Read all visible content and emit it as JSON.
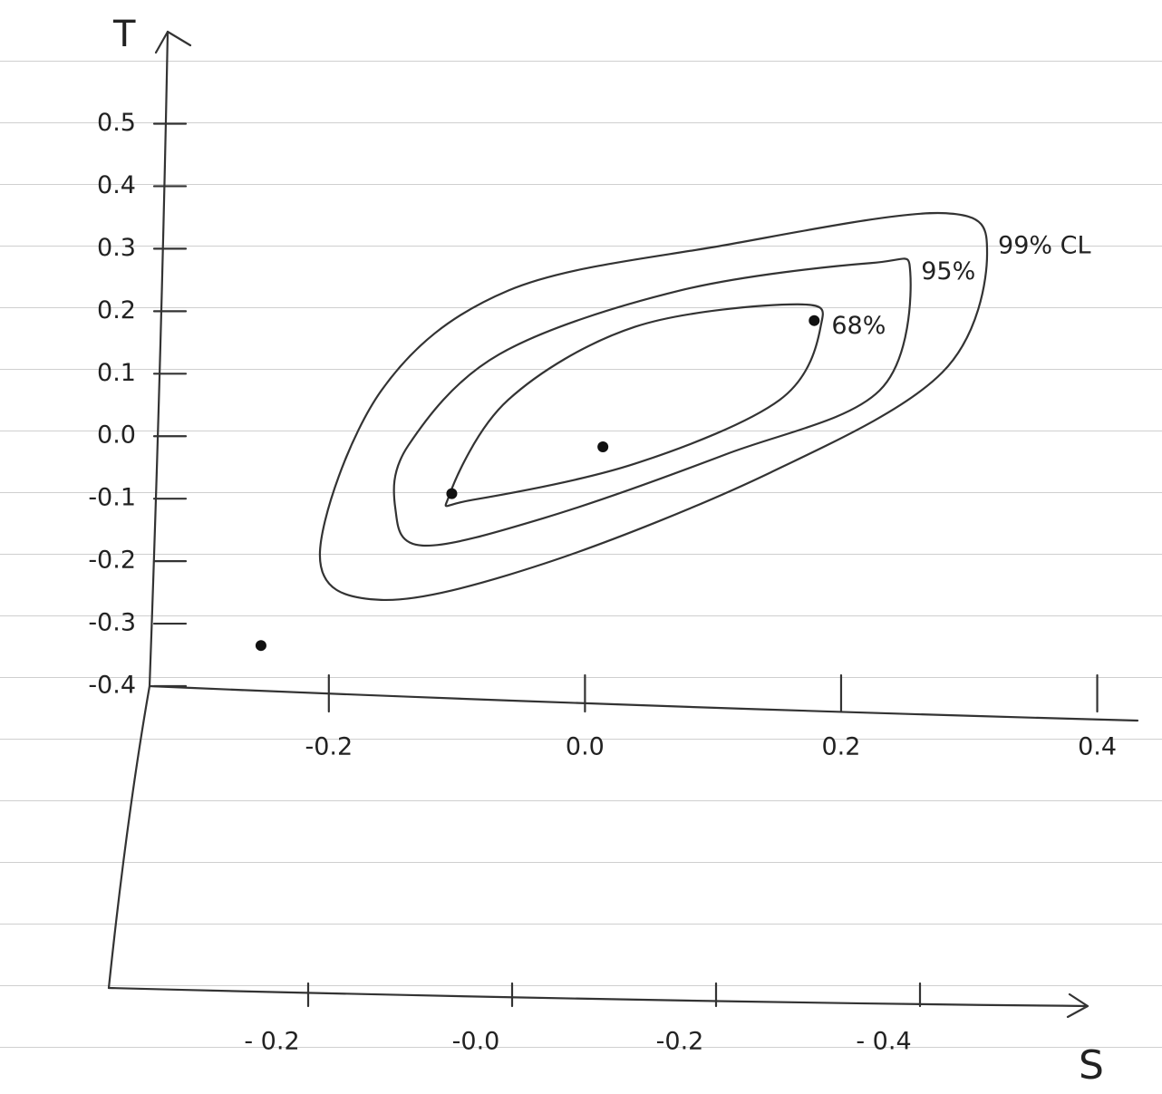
{
  "chart_data": {
    "type": "contour",
    "xlabel": "S",
    "ylabel": "T",
    "xlim": [
      -0.34,
      0.435
    ],
    "ylim": [
      -0.4,
      0.64
    ],
    "xticks": [
      -0.2,
      {
        "value": 0,
        "label": "0.0"
      },
      0.2,
      0.4
    ],
    "yticks": [
      0.5,
      0.4,
      0.3,
      0.2,
      0.1,
      {
        "value": 0,
        "label": "0.0"
      },
      -0.1,
      -0.2,
      -0.3,
      -0.4
    ],
    "series": [
      {
        "name": "99% CL",
        "x": [
          -0.207,
          -0.159,
          -0.032,
          0.145,
          0.279,
          0.314,
          0.279,
          0.11,
          -0.06,
          -0.159
        ],
        "y": [
          -0.19,
          -0.262,
          -0.204,
          -0.058,
          0.102,
          0.292,
          0.357,
          0.306,
          0.233,
          0.073
        ]
      },
      {
        "name": "95%",
        "x": [
          -0.148,
          -0.127,
          -0.032,
          0.11,
          0.23,
          0.254,
          0.223,
          0.074,
          -0.067,
          -0.138
        ],
        "y": [
          -0.117,
          -0.175,
          -0.131,
          -0.029,
          0.073,
          0.262,
          0.277,
          0.233,
          0.131,
          -0.015
        ]
      },
      {
        "name": "68%",
        "x": [
          -0.106,
          -0.088,
          0.039,
          0.152,
          0.184,
          0.166,
          0.039,
          -0.06
        ],
        "y": [
          -0.095,
          -0.102,
          -0.044,
          0.058,
          0.175,
          0.211,
          0.175,
          0.058
        ]
      }
    ],
    "points": {
      "x": [
        -0.104,
        0.014,
        0.179,
        -0.253
      ],
      "y": [
        -0.092,
        -0.017,
        0.185,
        -0.335
      ]
    },
    "second_axis_labels": [
      "- 0.2",
      "-0.0",
      "-0.2",
      "- 0.4"
    ]
  }
}
